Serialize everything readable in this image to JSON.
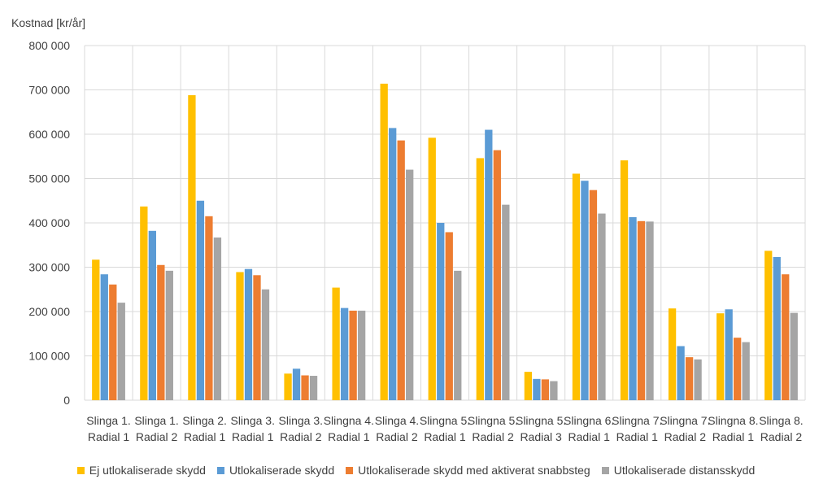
{
  "colors": {
    "ej_utlokaliserade": "#FFC000",
    "utlokaliserade": "#5B9BD5",
    "snabbsteg": "#ED7D31",
    "distansskydd": "#A5A5A5",
    "grid": "#D9D9D9"
  },
  "chart_data": {
    "type": "bar",
    "ylabel": "Kostnad [kr/år]",
    "ylim": [
      0,
      800000
    ],
    "yticks": [
      0,
      100000,
      200000,
      300000,
      400000,
      500000,
      600000,
      700000,
      800000
    ],
    "ytick_labels": [
      "0",
      "100 000",
      "200 000",
      "300 000",
      "400 000",
      "500 000",
      "600 000",
      "700 000",
      "800 000"
    ],
    "grid": true,
    "legend_position": "bottom",
    "categories": [
      [
        "Slinga 1.",
        "Radial 1"
      ],
      [
        "Slinga 1.",
        "Radial 2"
      ],
      [
        "Slinga 2.",
        "Radial 1"
      ],
      [
        "Slinga 3.",
        "Radial 1"
      ],
      [
        "Slinga 3.",
        "Radial 2"
      ],
      [
        "Slingna 4.",
        "Radial 1"
      ],
      [
        "Slinga 4.",
        "Radial 2"
      ],
      [
        "Slingna 5.",
        "Radial 1"
      ],
      [
        "Slingna 5.",
        "Radial 2"
      ],
      [
        "Slingna 5.",
        "Radial 3"
      ],
      [
        "Slingna 6.",
        "Radial 1"
      ],
      [
        "Slingna 7.",
        "Radial 1"
      ],
      [
        "Slingna 7.",
        "Radial 2"
      ],
      [
        "Slingna 8.",
        "Radial 1"
      ],
      [
        "Slinga 8.",
        "Radial 2"
      ]
    ],
    "series": [
      {
        "name": "Ej utlokaliserade skydd",
        "color_key": "ej_utlokaliserade",
        "values": [
          317000,
          437000,
          688000,
          289000,
          60000,
          254000,
          714000,
          592000,
          546000,
          64000,
          511000,
          541000,
          207000,
          196000,
          337000
        ]
      },
      {
        "name": "Utlokaliserade skydd",
        "color_key": "utlokaliserade",
        "values": [
          284000,
          382000,
          450000,
          296000,
          71000,
          208000,
          614000,
          400000,
          610000,
          48000,
          495000,
          413000,
          122000,
          205000,
          323000
        ]
      },
      {
        "name": "Utlokaliserade skydd med aktiverat snabbsteg",
        "color_key": "snabbsteg",
        "values": [
          261000,
          305000,
          415000,
          282000,
          56000,
          202000,
          586000,
          379000,
          564000,
          47000,
          474000,
          404000,
          97000,
          141000,
          284000
        ]
      },
      {
        "name": "Utlokaliserade distansskydd",
        "color_key": "distansskydd",
        "values": [
          220000,
          292000,
          367000,
          250000,
          55000,
          202000,
          520000,
          292000,
          441000,
          43000,
          421000,
          403000,
          92000,
          131000,
          197000
        ]
      }
    ]
  }
}
